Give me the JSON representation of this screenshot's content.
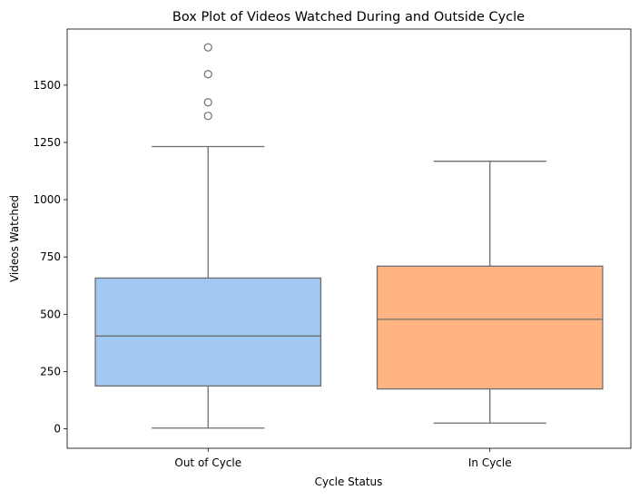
{
  "chart_data": {
    "type": "box",
    "title": "Box Plot of Videos Watched During and Outside Cycle",
    "xlabel": "Cycle Status",
    "ylabel": "Videos Watched",
    "categories": [
      "Out of Cycle",
      "In Cycle"
    ],
    "yticks": [
      0,
      250,
      500,
      750,
      1000,
      1250,
      1500
    ],
    "ylim": [
      -85,
      1745
    ],
    "grid": false,
    "series": [
      {
        "category": "Out of Cycle",
        "whisker_low": 3,
        "q1": 187,
        "median": 405,
        "q3": 658,
        "whisker_high": 1232,
        "outliers": [
          1366,
          1425,
          1548,
          1665
        ],
        "color": "#a1c9f4"
      },
      {
        "category": "In Cycle",
        "whisker_low": 25,
        "q1": 174,
        "median": 478,
        "q3": 710,
        "whisker_high": 1168,
        "outliers": [],
        "color": "#ffb482"
      }
    ]
  }
}
